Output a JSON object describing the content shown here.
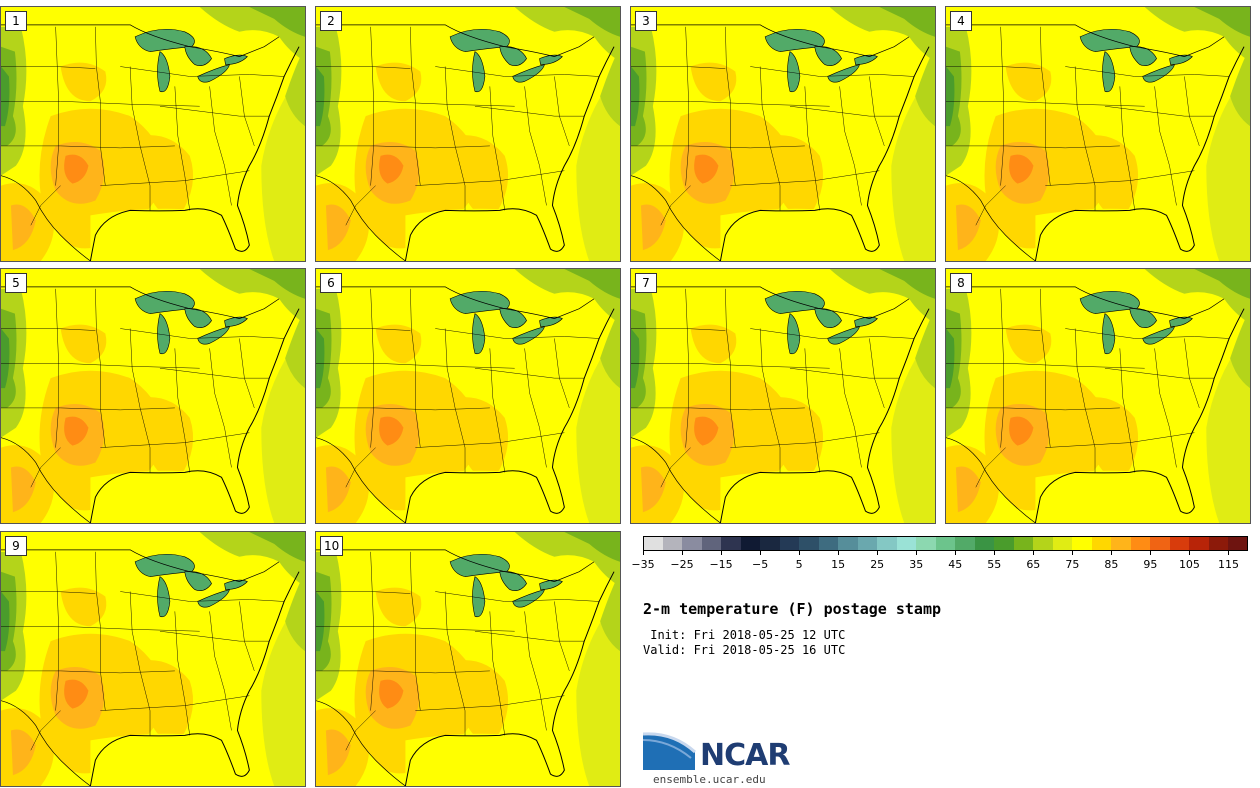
{
  "stamps": [
    {
      "label": "1"
    },
    {
      "label": "2"
    },
    {
      "label": "3"
    },
    {
      "label": "4"
    },
    {
      "label": "5"
    },
    {
      "label": "6"
    },
    {
      "label": "7"
    },
    {
      "label": "8"
    },
    {
      "label": "9"
    },
    {
      "label": "10"
    }
  ],
  "colorbar": {
    "colors": [
      "#e0e0e0",
      "#b4b4bc",
      "#8a8ca0",
      "#60647c",
      "#2e3450",
      "#101a33",
      "#1a2840",
      "#243a56",
      "#2e5068",
      "#3e6c80",
      "#568e9a",
      "#6aa8ae",
      "#84c8c4",
      "#9ae2d6",
      "#8cd8b0",
      "#6cc48c",
      "#52aa68",
      "#3a9444",
      "#4a9c2c",
      "#78b41c",
      "#b4d41a",
      "#e0ec14",
      "#ffff00",
      "#ffd700",
      "#ffb41a",
      "#ff8c14",
      "#f06414",
      "#d83c0c",
      "#b82408",
      "#8c1a0a",
      "#6e1410"
    ],
    "tick_labels": [
      "-35",
      "-25",
      "-15",
      "-5",
      "5",
      "15",
      "25",
      "35",
      "45",
      "55",
      "65",
      "75",
      "85",
      "95",
      "105",
      "115"
    ]
  },
  "title": "2-m temperature (F) postage stamp",
  "init_line": " Init: Fri 2018-05-25 12 UTC",
  "valid_line": "Valid: Fri 2018-05-25 16 UTC",
  "logo": {
    "text": "NCAR",
    "site": "ensemble.ucar.edu"
  }
}
